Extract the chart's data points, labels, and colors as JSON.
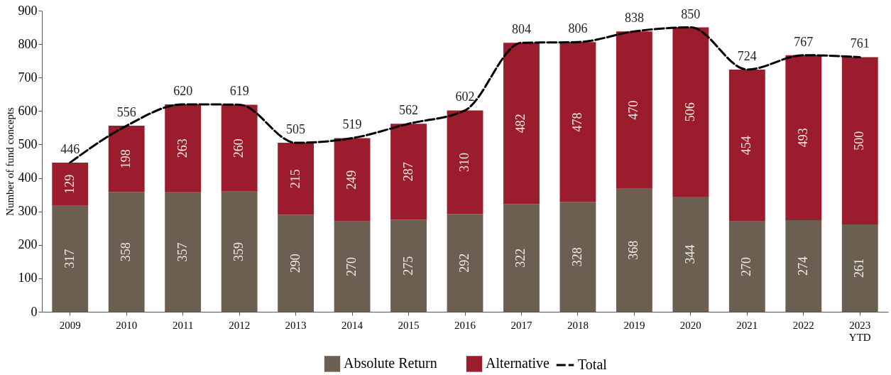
{
  "chart_data": {
    "type": "bar",
    "stacked": true,
    "ylabel": "Number of fund concepts",
    "categories": [
      "2009",
      "2010",
      "2011",
      "2012",
      "2013",
      "2014",
      "2015",
      "2016",
      "2017",
      "2018",
      "2019",
      "2020",
      "2021",
      "2022",
      "2023\nYTD"
    ],
    "series": [
      {
        "name": "Absolute Return",
        "color": "#6b5f52",
        "values": [
          317,
          358,
          357,
          359,
          290,
          270,
          275,
          292,
          322,
          328,
          368,
          344,
          270,
          274,
          261
        ]
      },
      {
        "name": "Alternative",
        "color": "#9b1d2d",
        "values": [
          129,
          198,
          263,
          260,
          215,
          249,
          287,
          310,
          482,
          478,
          470,
          506,
          454,
          493,
          500
        ]
      },
      {
        "name": "Total",
        "type": "line",
        "color": "#000000",
        "line_style": "dashed",
        "values": [
          446,
          556,
          620,
          619,
          505,
          519,
          562,
          602,
          804,
          806,
          838,
          850,
          724,
          767,
          761
        ]
      }
    ],
    "ylim": [
      0,
      900
    ],
    "yticks": [
      0,
      100,
      200,
      300,
      400,
      500,
      600,
      700,
      800,
      900
    ],
    "data_labels": true,
    "grid": false,
    "legend": "bottom"
  }
}
